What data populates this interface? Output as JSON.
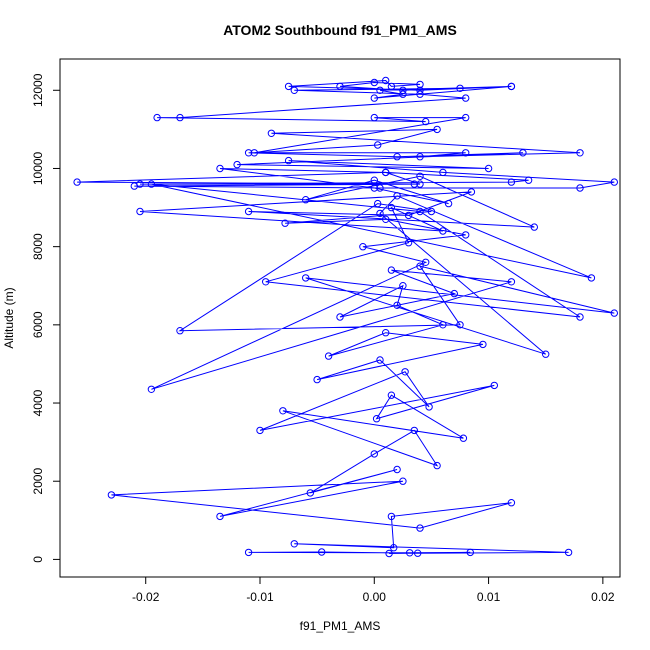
{
  "chart_data": {
    "type": "line",
    "title": "ATOM2 Southbound f91_PM1_AMS",
    "xlabel": "f91_PM1_AMS",
    "ylabel": "Altitude (m)",
    "xlim": [
      -0.0275,
      0.0215
    ],
    "ylim": [
      -450,
      12800
    ],
    "x_ticks": [
      -0.02,
      -0.01,
      0.0,
      0.01,
      0.02
    ],
    "x_tick_labels": [
      "-0.02",
      "-0.01",
      "0.00",
      "0.01",
      "0.02"
    ],
    "y_ticks": [
      0,
      2000,
      4000,
      6000,
      8000,
      10000,
      12000
    ],
    "y_tick_labels": [
      "0",
      "2000",
      "4000",
      "6000",
      "8000",
      "10000",
      "12000"
    ],
    "grid": false,
    "series_color": "#0000ff",
    "series": [
      {
        "style": "points-and-lines",
        "x": [
          0.0013,
          0.0084,
          0.0031,
          -0.011,
          -0.0046,
          0.0038,
          0.017,
          -0.007,
          0.0017,
          0.0015,
          0.012,
          0.004,
          -0.023,
          0.0025,
          -0.0135,
          0.002,
          -0.0056,
          0.0,
          0.0035,
          0.0055,
          -0.008,
          0.0078,
          0.0015,
          0.0002,
          0.0105,
          -0.01,
          0.0027,
          0.0048,
          0.0005,
          -0.005,
          0.0095,
          0.001,
          -0.004,
          0.006,
          0.002,
          0.0025,
          -0.003,
          0.007,
          0.0015,
          0.012,
          -0.0195,
          0.0045,
          -0.001,
          0.008,
          0.001,
          -0.0078,
          0.005,
          0.0003,
          -0.017,
          0.0075,
          0.004,
          0.021,
          -0.006,
          0.015,
          0.0005,
          0.002,
          0.019,
          -0.0195,
          0.004,
          0.018,
          -0.0095,
          0.003,
          0.0015,
          0.006,
          -0.0205,
          0.0085,
          0.003,
          -0.011,
          0.014,
          0.004,
          -0.006,
          0.0,
          0.0065,
          0.0,
          -0.0135,
          0.001,
          0.004,
          -0.0205,
          0.012,
          0.0135,
          0.001,
          -0.026,
          0.0035,
          -0.021,
          0.0005,
          0.018,
          0.021,
          0.006,
          -0.0075,
          0.01,
          -0.012,
          0.013,
          0.002,
          -0.011,
          0.008,
          0.004,
          0.018,
          -0.009,
          0.0055,
          0.0003,
          -0.0105,
          0.008,
          0.0,
          0.0045,
          -0.019,
          -0.017,
          0.008,
          0.004,
          -0.007,
          0.0075,
          0.0025,
          -0.003,
          0.0,
          0.004,
          0.0015,
          0.001,
          -0.0075,
          0.004,
          0.012,
          0.0,
          0.0025,
          0.0005,
          0.012
        ],
        "y": [
          150,
          180,
          170,
          180,
          190,
          160,
          180,
          400,
          300,
          1100,
          1450,
          800,
          1650,
          2000,
          1100,
          2300,
          1700,
          2700,
          3300,
          2400,
          3800,
          3100,
          4200,
          3600,
          4450,
          3300,
          4800,
          3900,
          5100,
          4600,
          5500,
          5800,
          5200,
          6000,
          6500,
          7000,
          6200,
          6800,
          7400,
          7100,
          4350,
          7600,
          8000,
          8300,
          8700,
          8600,
          8900,
          9100,
          5850,
          6000,
          7500,
          6300,
          7200,
          5250,
          8850,
          9300,
          7200,
          9600,
          8900,
          6200,
          7100,
          8100,
          9000,
          8400,
          8900,
          9400,
          8800,
          8900,
          8500,
          9800,
          9200,
          9700,
          9100,
          9500,
          10000,
          9900,
          9600,
          9600,
          9650,
          9700,
          9900,
          9650,
          9600,
          9550,
          9500,
          9500,
          9650,
          9900,
          10200,
          10000,
          10100,
          10400,
          10300,
          10400,
          10400,
          10300,
          10400,
          10900,
          11000,
          10600,
          10400,
          11300,
          11300,
          11200,
          11300,
          11300,
          11800,
          11900,
          12000,
          12050,
          12000,
          12100,
          12200,
          12150,
          12100,
          12250,
          12100,
          12000,
          12100,
          11800,
          11900,
          12000,
          12100
        ]
      }
    ]
  }
}
